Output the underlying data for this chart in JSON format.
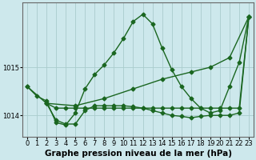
{
  "background_color": "#cde8ec",
  "grid_color": "#aacccc",
  "line_color": "#1a6620",
  "xlabel": "Graphe pression niveau de la mer (hPa)",
  "xlim": [
    -0.5,
    23.5
  ],
  "ylim": [
    1013.55,
    1016.35
  ],
  "yticks": [
    1014,
    1015
  ],
  "xticks": [
    0,
    1,
    2,
    3,
    4,
    5,
    6,
    7,
    8,
    9,
    10,
    11,
    12,
    13,
    14,
    15,
    16,
    17,
    18,
    19,
    20,
    21,
    22,
    23
  ],
  "series": [
    {
      "x": [
        0,
        1,
        2,
        3,
        4,
        5,
        6,
        7,
        8,
        9,
        10,
        11,
        12,
        13,
        14,
        15,
        16,
        17,
        18,
        19,
        20,
        21,
        22,
        23
      ],
      "y": [
        1014.6,
        1014.4,
        1014.3,
        1013.85,
        1013.8,
        1014.05,
        1014.55,
        1014.85,
        1015.05,
        1015.3,
        1015.6,
        1015.95,
        1016.1,
        1015.9,
        1015.4,
        1014.95,
        1014.6,
        1014.35,
        1014.15,
        1014.05,
        1014.1,
        1014.6,
        1015.1,
        1016.05
      ],
      "marker": "D",
      "markersize": 2.5,
      "linewidth": 1.0
    },
    {
      "x": [
        0,
        2,
        5,
        8,
        11,
        14,
        17,
        19,
        21,
        23
      ],
      "y": [
        1014.6,
        1014.25,
        1014.2,
        1014.35,
        1014.55,
        1014.75,
        1014.9,
        1015.0,
        1015.2,
        1016.05
      ],
      "marker": "D",
      "markersize": 2.5,
      "linewidth": 1.0
    },
    {
      "x": [
        2,
        3,
        4,
        5,
        6,
        7,
        8,
        9,
        10,
        11,
        12,
        13,
        14,
        15,
        16,
        17,
        18,
        19,
        20,
        21,
        22,
        23
      ],
      "y": [
        1014.25,
        1014.15,
        1014.15,
        1014.15,
        1014.15,
        1014.15,
        1014.15,
        1014.15,
        1014.15,
        1014.15,
        1014.15,
        1014.15,
        1014.15,
        1014.15,
        1014.15,
        1014.15,
        1014.15,
        1014.15,
        1014.15,
        1014.15,
        1014.15,
        1016.05
      ],
      "marker": "D",
      "markersize": 2.5,
      "linewidth": 1.0
    },
    {
      "x": [
        2,
        3,
        4,
        5,
        6,
        7,
        8,
        9,
        10,
        11,
        12,
        13,
        14,
        15,
        16,
        17,
        18,
        19,
        20,
        21,
        22,
        23
      ],
      "y": [
        1014.25,
        1013.9,
        1013.82,
        1013.82,
        1014.1,
        1014.2,
        1014.2,
        1014.2,
        1014.2,
        1014.18,
        1014.15,
        1014.1,
        1014.05,
        1014.0,
        1013.98,
        1013.95,
        1013.98,
        1014.0,
        1014.0,
        1014.0,
        1014.05,
        1016.05
      ],
      "marker": "D",
      "markersize": 2.5,
      "linewidth": 1.0
    }
  ],
  "tick_fontsize": 6,
  "label_fontsize": 7.5,
  "label_fontweight": "bold"
}
